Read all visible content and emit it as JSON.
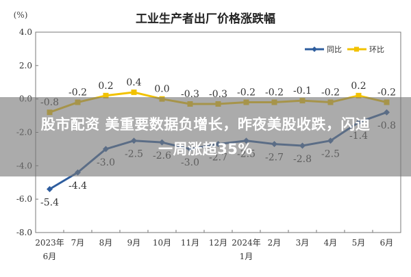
{
  "chart_data": {
    "type": "line",
    "title": "工业生产者出厂价格涨跌幅",
    "ylabel": "(%)",
    "ylim": [
      -8.0,
      4.0
    ],
    "yticks": [
      "4.0",
      "2.0",
      "0.0",
      "-2.0",
      "-4.0",
      "-6.0",
      "-8.0"
    ],
    "categories": [
      [
        "2023年",
        "6月"
      ],
      [
        "7月"
      ],
      [
        "8月"
      ],
      [
        "9月"
      ],
      [
        "10月"
      ],
      [
        "11月"
      ],
      [
        "12月"
      ],
      [
        "2024年",
        "1月"
      ],
      [
        "2月"
      ],
      [
        "3月"
      ],
      [
        "4月"
      ],
      [
        "5月"
      ],
      [
        "6月"
      ]
    ],
    "legend_position": "top-right",
    "series": [
      {
        "name": "同比",
        "color": "#2e5d9e",
        "values": [
          -5.4,
          -4.4,
          -3.0,
          -2.5,
          -2.6,
          -3.0,
          -2.7,
          -2.5,
          -2.7,
          -2.8,
          -2.5,
          -1.4,
          -0.8
        ],
        "labels": [
          "-5.4",
          "-4.4",
          "-3.0",
          "-2.5",
          "-2.6",
          "-3.0",
          "-2.7",
          "-2.5",
          "-2.7",
          "-2.8",
          "-2.5",
          "-1.4",
          "-0.8"
        ]
      },
      {
        "name": "环比",
        "color": "#f2c200",
        "values": [
          -0.8,
          -0.2,
          0.2,
          0.4,
          0.0,
          -0.3,
          -0.3,
          -0.2,
          -0.2,
          -0.1,
          -0.2,
          0.2,
          -0.2
        ],
        "labels": [
          "-0.8",
          "-0.2",
          "0.2",
          "0.4",
          "0.0",
          "-0.3",
          "-0.3",
          "-0.2",
          "-0.2",
          "-0.1",
          "-0.2",
          "0.2",
          "-0.2"
        ]
      }
    ]
  },
  "banner": {
    "line1": "股市配资 美重要数据负增长，昨夜美股收跌，闪迪",
    "line2": "一周涨超35%"
  }
}
